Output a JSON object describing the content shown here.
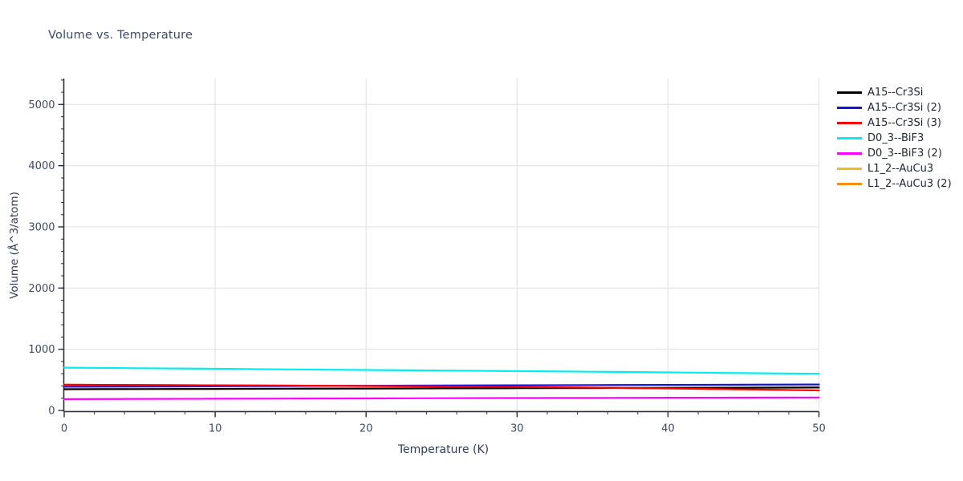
{
  "chart_data": {
    "type": "line",
    "title": "Volume vs. Temperature",
    "xlabel": "Temperature (K)",
    "ylabel": "Volume (Å^3/atom)",
    "xlim": [
      0,
      50
    ],
    "ylim": [
      0,
      5425
    ],
    "grid": true,
    "legend_position": "right-outside",
    "x_major_ticks": [
      0,
      10,
      20,
      30,
      40,
      50
    ],
    "x_tick_labels": [
      "0",
      "10",
      "20",
      "30",
      "40",
      "50"
    ],
    "x_minor_tick_step": 2,
    "y_major_ticks": [
      0,
      1000,
      2000,
      3000,
      4000,
      5000
    ],
    "y_tick_labels": [
      "0",
      "1000",
      "2000",
      "3000",
      "4000",
      "5000"
    ],
    "y_minor_tick_step": 200,
    "x": [
      0,
      5,
      10,
      15,
      20,
      25,
      30,
      35,
      40,
      45,
      50
    ],
    "series": [
      {
        "name": "L1_2--AuCu3",
        "color": "#eebb22",
        "hidden_behind_other_lines": true,
        "values": [
          347,
          350,
          353,
          356,
          359,
          362,
          364,
          367,
          370,
          372,
          375
        ]
      },
      {
        "name": "L1_2--AuCu3 (2)",
        "color": "#fe8d0e",
        "hidden_behind_other_lines": true,
        "values": [
          420,
          416,
          411,
          406,
          400,
          393,
          384,
          373,
          360,
          344,
          327
        ]
      },
      {
        "name": "A15--Cr3Si",
        "color": "#000000",
        "values": [
          347,
          350,
          353,
          356,
          359,
          362,
          364,
          367,
          370,
          372,
          375
        ]
      },
      {
        "name": "A15--Cr3Si (2)",
        "color": "#1414e0",
        "values": [
          388,
          392,
          396,
          400,
          404,
          408,
          411,
          415,
          418,
          421,
          424
        ]
      },
      {
        "name": "A15--Cr3Si (3)",
        "color": "#ff0000",
        "values": [
          420,
          416,
          411,
          406,
          400,
          393,
          384,
          373,
          360,
          344,
          327
        ]
      },
      {
        "name": "D0_3--BiF3",
        "color": "#00eef2",
        "values": [
          700,
          690,
          681,
          671,
          662,
          652,
          643,
          633,
          622,
          611,
          600
        ]
      },
      {
        "name": "D0_3--BiF3 (2)",
        "color": "#ff00ff",
        "values": [
          185,
          188,
          191,
          194,
          197,
          200,
          203,
          205,
          208,
          210,
          212
        ]
      }
    ],
    "legend_items": [
      {
        "label": "A15--Cr3Si",
        "color": "#000000"
      },
      {
        "label": "A15--Cr3Si (2)",
        "color": "#1414e0"
      },
      {
        "label": "A15--Cr3Si (3)",
        "color": "#ff0000"
      },
      {
        "label": "D0_3--BiF3",
        "color": "#00eef2"
      },
      {
        "label": "D0_3--BiF3 (2)",
        "color": "#ff00ff"
      },
      {
        "label": "L1_2--AuCu3",
        "color": "#eebb22"
      },
      {
        "label": "L1_2--AuCu3 (2)",
        "color": "#fe8d0e"
      }
    ],
    "colors": {
      "grid": "#e6e6e6",
      "spine": "#2b2f3a",
      "tick_label": "#3c4a68",
      "title_text": "#3a4a6b",
      "axis_title_text": "#2e3d5e",
      "legend_text": "#1d2535",
      "background": "#ffffff"
    }
  }
}
